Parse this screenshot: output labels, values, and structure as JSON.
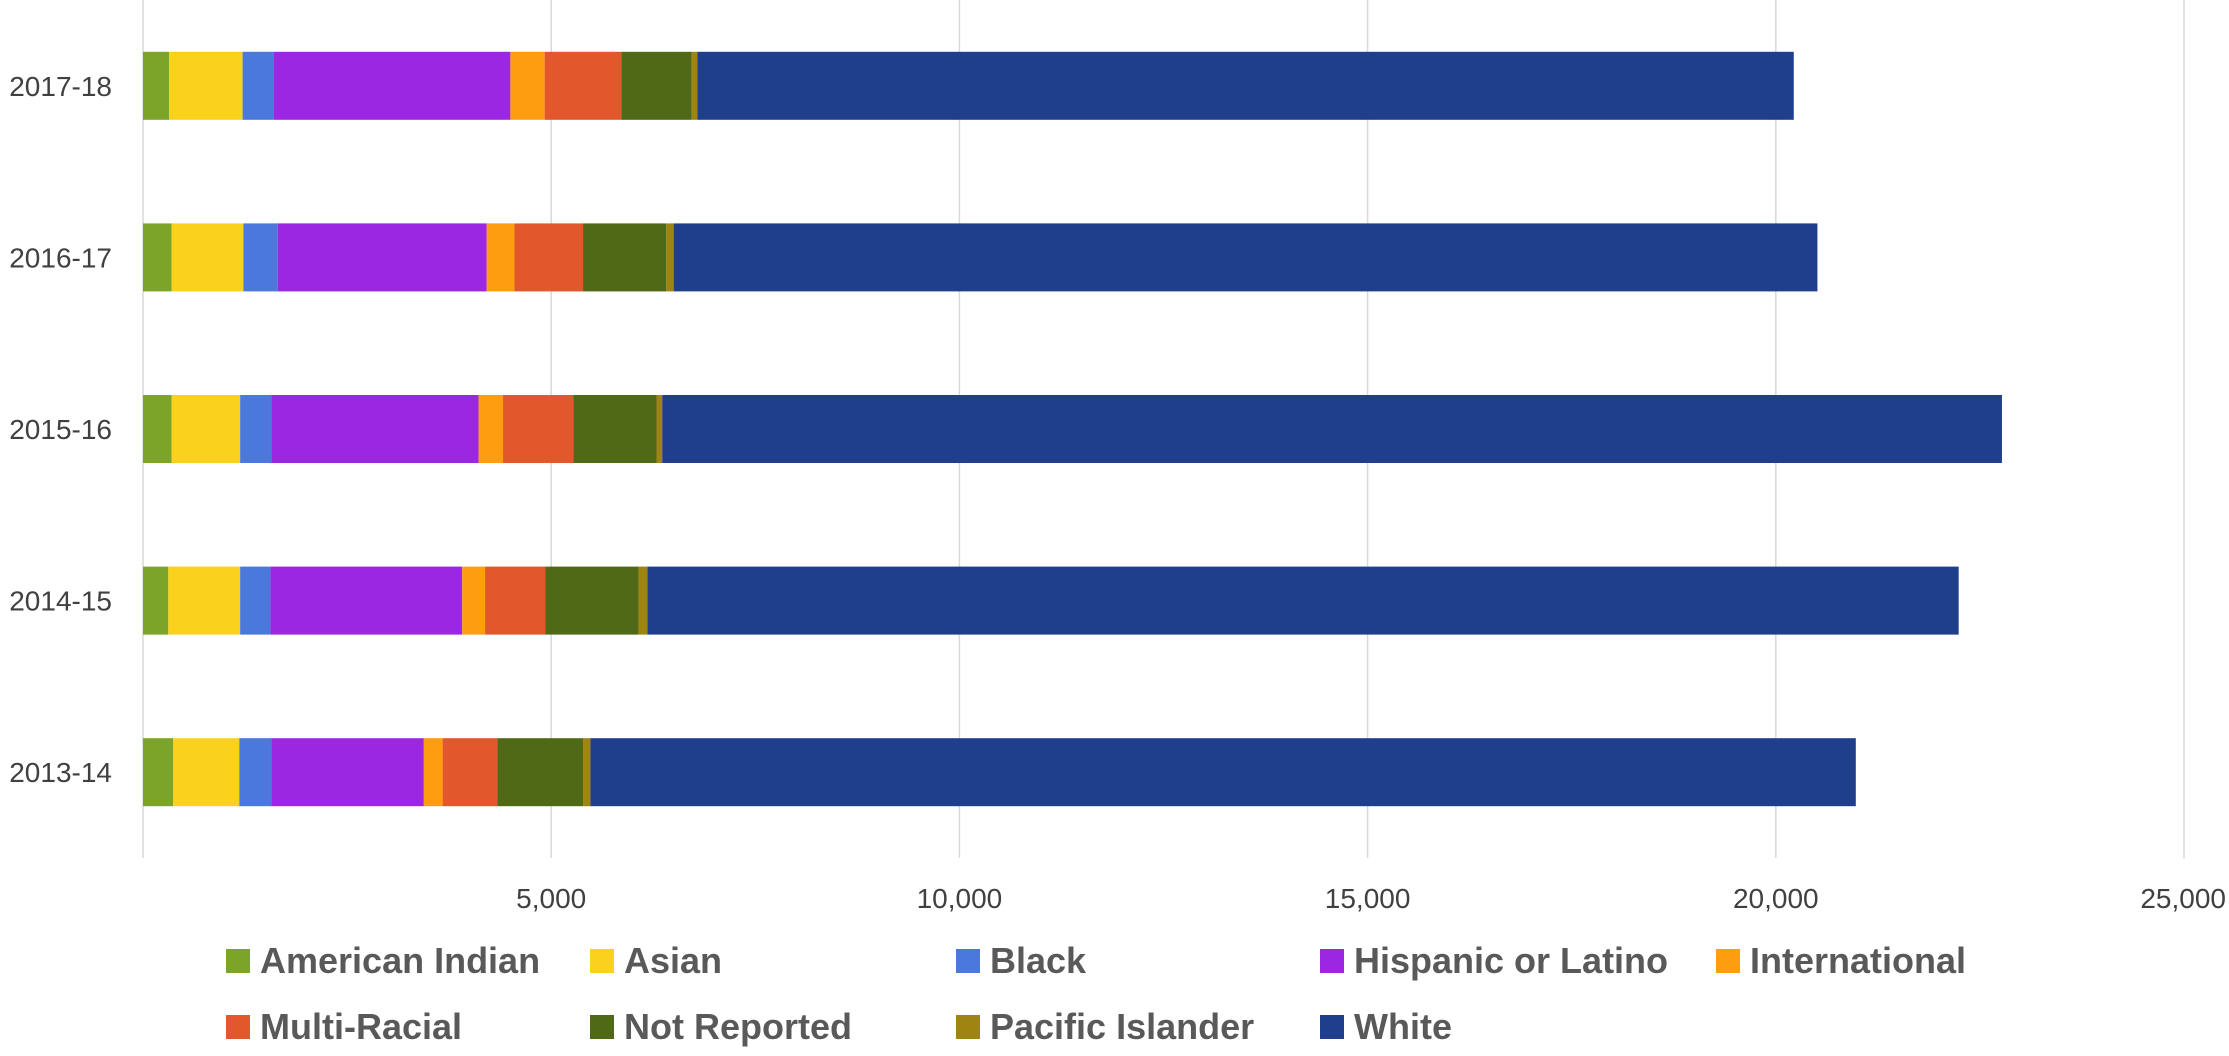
{
  "chart_data": {
    "type": "bar",
    "orientation": "horizontal",
    "stacked": true,
    "categories": [
      "2017-18",
      "2016-17",
      "2015-16",
      "2014-15",
      "2013-14"
    ],
    "series": [
      {
        "name": "American Indian",
        "color": "#7BA428",
        "values": [
          320,
          350,
          350,
          310,
          370
        ]
      },
      {
        "name": "Asian",
        "color": "#FAD11B",
        "values": [
          900,
          880,
          840,
          880,
          810
        ]
      },
      {
        "name": "Black",
        "color": "#4A78DB",
        "values": [
          380,
          420,
          380,
          370,
          390
        ]
      },
      {
        "name": "Hispanic or Latino",
        "color": "#9B27E2",
        "values": [
          2900,
          2560,
          2540,
          2350,
          1870
        ]
      },
      {
        "name": "International",
        "color": "#FD9D0F",
        "values": [
          420,
          340,
          300,
          280,
          230
        ]
      },
      {
        "name": "Multi-Racial",
        "color": "#E2572B",
        "values": [
          940,
          840,
          860,
          740,
          670
        ]
      },
      {
        "name": "Not Reported",
        "color": "#506917",
        "values": [
          860,
          1020,
          1020,
          1140,
          1050
        ]
      },
      {
        "name": "Pacific Islander",
        "color": "#9E8511",
        "values": [
          70,
          90,
          70,
          110,
          90
        ]
      },
      {
        "name": "White",
        "color": "#1F3E8C",
        "values": [
          13430,
          14010,
          16410,
          16060,
          15500
        ]
      }
    ],
    "xlim": [
      0,
      25000
    ],
    "xticks": [
      5000,
      10000,
      15000,
      20000,
      25000
    ],
    "xtick_labels": [
      "5,000",
      "10,000",
      "15,000",
      "20,000",
      "25,000"
    ],
    "grid": true,
    "legend_position": "bottom",
    "title": "",
    "xlabel": "",
    "ylabel": ""
  }
}
